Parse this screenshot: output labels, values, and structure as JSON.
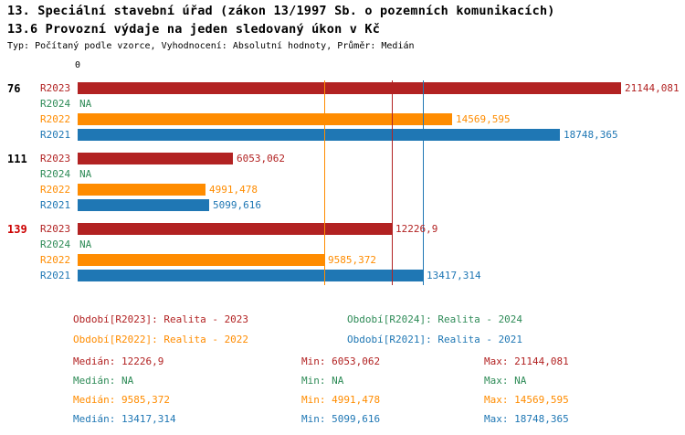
{
  "title": "13. Speciální stavební úřad (zákon 13/1997 Sb. o pozemních komunikacích)",
  "subtitle": "13.6 Provozní výdaje na jeden sledovaný úkon v Kč",
  "meta": "Typ: Počítaný podle vzorce, Vyhodnocení: Absolutní hodnoty, Průměr: Medián",
  "colors": {
    "R2023": "#b22222",
    "R2024": "#2e8b57",
    "R2022": "#ff8c00",
    "R2021": "#1f77b4",
    "highlight_group": "#cc0000",
    "group_label": "#000000"
  },
  "chart_data": {
    "type": "bar",
    "orientation": "horizontal",
    "axis": {
      "zero_label": "0",
      "x_min": 0,
      "x_max": 21144.081,
      "grid": false
    },
    "series_names": [
      "R2023",
      "R2024",
      "R2022",
      "R2021"
    ],
    "groups": [
      {
        "label": "76",
        "highlighted": false,
        "bars": [
          {
            "series": "R2023",
            "value": 21144.081,
            "display": "21144,081"
          },
          {
            "series": "R2024",
            "value": null,
            "display": "NA"
          },
          {
            "series": "R2022",
            "value": 14569.595,
            "display": "14569,595"
          },
          {
            "series": "R2021",
            "value": 18748.365,
            "display": "18748,365"
          }
        ]
      },
      {
        "label": "111",
        "highlighted": false,
        "bars": [
          {
            "series": "R2023",
            "value": 6053.062,
            "display": "6053,062"
          },
          {
            "series": "R2024",
            "value": null,
            "display": "NA"
          },
          {
            "series": "R2022",
            "value": 4991.478,
            "display": "4991,478"
          },
          {
            "series": "R2021",
            "value": 5099.616,
            "display": "5099,616"
          }
        ]
      },
      {
        "label": "139",
        "highlighted": true,
        "bars": [
          {
            "series": "R2023",
            "value": 12226.9,
            "display": "12226,9"
          },
          {
            "series": "R2024",
            "value": null,
            "display": "NA"
          },
          {
            "series": "R2022",
            "value": 9585.372,
            "display": "9585,372"
          },
          {
            "series": "R2021",
            "value": 13417.314,
            "display": "13417,314"
          }
        ]
      }
    ],
    "reference_lines": [
      {
        "series": "R2022",
        "value": 9585.372
      },
      {
        "series": "R2023",
        "value": 12226.9
      },
      {
        "series": "R2021",
        "value": 13417.314
      }
    ]
  },
  "legend": {
    "items": [
      {
        "series": "R2023",
        "label": "Období[R2023]: Realita - 2023"
      },
      {
        "series": "R2024",
        "label": "Období[R2024]: Realita - 2024"
      },
      {
        "series": "R2022",
        "label": "Období[R2022]: Realita - 2022"
      },
      {
        "series": "R2021",
        "label": "Období[R2021]: Realita - 2021"
      }
    ]
  },
  "stats": {
    "rows": [
      {
        "series": "R2023",
        "median": "Medián: 12226,9",
        "min": "Min: 6053,062",
        "max": "Max: 21144,081"
      },
      {
        "series": "R2024",
        "median": "Medián: NA",
        "min": "Min: NA",
        "max": "Max: NA"
      },
      {
        "series": "R2022",
        "median": "Medián: 9585,372",
        "min": "Min: 4991,478",
        "max": "Max: 14569,595"
      },
      {
        "series": "R2021",
        "median": "Medián: 13417,314",
        "min": "Min: 5099,616",
        "max": "Max: 18748,365"
      }
    ]
  }
}
